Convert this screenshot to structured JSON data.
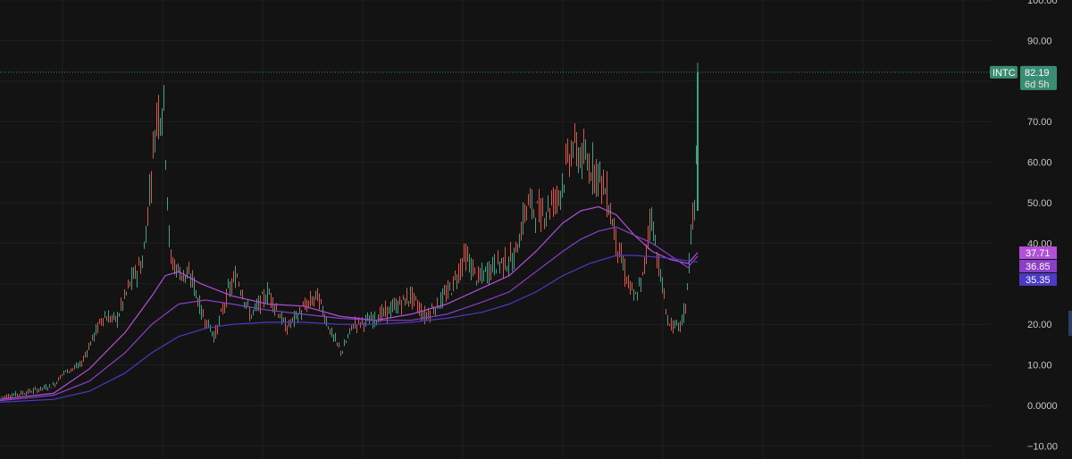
{
  "chart_data": {
    "type": "candlestick",
    "symbol": "INTC",
    "last_price": "82.19",
    "countdown": "6d 5h",
    "y_axis": {
      "ylim": [
        -12,
        100
      ],
      "ticks": [
        {
          "value": 100,
          "label": "100.00"
        },
        {
          "value": 90,
          "label": "90.00"
        },
        {
          "value": 70,
          "label": "70.00"
        },
        {
          "value": 60,
          "label": "60.00"
        },
        {
          "value": 50,
          "label": "50.00"
        },
        {
          "value": 40,
          "label": "40.00"
        },
        {
          "value": 20,
          "label": "20.00"
        },
        {
          "value": 10,
          "label": "10.00"
        },
        {
          "value": 0,
          "label": "0.0000"
        },
        {
          "value": -10,
          "label": "−10.00"
        }
      ]
    },
    "grid": true,
    "colors": {
      "background": "#131313",
      "grid": "#1f1f1f",
      "up": "#3fa287",
      "down": "#d9584c",
      "last_price": "#3a8c72",
      "ma_fast": "#b34fd8",
      "ma_mid": "#8a3fc6",
      "ma_slow": "#4a3ac4"
    },
    "price_path": [
      [
        0,
        2
      ],
      [
        35,
        3.5
      ],
      [
        60,
        5
      ],
      [
        70,
        8
      ],
      [
        90,
        10
      ],
      [
        100,
        15
      ],
      [
        115,
        22
      ],
      [
        130,
        21
      ],
      [
        145,
        30
      ],
      [
        160,
        36
      ],
      [
        168,
        55
      ],
      [
        175,
        72
      ],
      [
        183,
        74
      ],
      [
        190,
        36
      ],
      [
        200,
        33
      ],
      [
        215,
        31
      ],
      [
        225,
        23
      ],
      [
        240,
        17
      ],
      [
        255,
        28
      ],
      [
        265,
        32
      ],
      [
        280,
        22
      ],
      [
        300,
        28
      ],
      [
        320,
        19
      ],
      [
        340,
        24
      ],
      [
        355,
        27
      ],
      [
        370,
        18
      ],
      [
        382,
        13
      ],
      [
        395,
        20
      ],
      [
        415,
        21
      ],
      [
        440,
        24
      ],
      [
        460,
        27
      ],
      [
        475,
        22
      ],
      [
        490,
        25
      ],
      [
        505,
        29
      ],
      [
        520,
        37
      ],
      [
        535,
        31
      ],
      [
        555,
        35
      ],
      [
        575,
        36
      ],
      [
        590,
        50
      ],
      [
        605,
        47
      ],
      [
        625,
        52
      ],
      [
        640,
        64
      ],
      [
        655,
        60
      ],
      [
        668,
        58
      ],
      [
        680,
        51
      ],
      [
        690,
        40
      ],
      [
        700,
        32
      ],
      [
        710,
        26
      ],
      [
        720,
        32
      ],
      [
        728,
        48
      ],
      [
        738,
        33
      ],
      [
        748,
        20
      ],
      [
        760,
        19
      ],
      [
        767,
        24
      ],
      [
        773,
        42
      ],
      [
        778,
        50
      ],
      [
        781,
        82.19
      ]
    ],
    "moving_averages": [
      {
        "label": "37.71",
        "value": 37.71,
        "points": [
          [
            0,
            1.5
          ],
          [
            60,
            3
          ],
          [
            100,
            9
          ],
          [
            140,
            18
          ],
          [
            170,
            27
          ],
          [
            185,
            32
          ],
          [
            200,
            33
          ],
          [
            225,
            30
          ],
          [
            260,
            27
          ],
          [
            300,
            25
          ],
          [
            340,
            24.5
          ],
          [
            380,
            22
          ],
          [
            420,
            21
          ],
          [
            460,
            22.5
          ],
          [
            500,
            25
          ],
          [
            540,
            29
          ],
          [
            570,
            32
          ],
          [
            600,
            38
          ],
          [
            630,
            45
          ],
          [
            650,
            48
          ],
          [
            670,
            49
          ],
          [
            690,
            47
          ],
          [
            710,
            42
          ],
          [
            730,
            38
          ],
          [
            750,
            36
          ],
          [
            770,
            35
          ],
          [
            781,
            37.71
          ]
        ]
      },
      {
        "label": "36.85",
        "value": 36.85,
        "points": [
          [
            0,
            1.2
          ],
          [
            60,
            2.5
          ],
          [
            100,
            6
          ],
          [
            140,
            13
          ],
          [
            170,
            20
          ],
          [
            200,
            25
          ],
          [
            230,
            26
          ],
          [
            260,
            25
          ],
          [
            300,
            23.5
          ],
          [
            340,
            22.5
          ],
          [
            380,
            21.5
          ],
          [
            420,
            21
          ],
          [
            460,
            21
          ],
          [
            500,
            22.5
          ],
          [
            540,
            25.5
          ],
          [
            570,
            28
          ],
          [
            600,
            33
          ],
          [
            630,
            38
          ],
          [
            650,
            41
          ],
          [
            670,
            43
          ],
          [
            690,
            44
          ],
          [
            710,
            42
          ],
          [
            730,
            40
          ],
          [
            750,
            37
          ],
          [
            770,
            34
          ],
          [
            781,
            36.85
          ]
        ]
      },
      {
        "label": "35.35",
        "value": 35.35,
        "points": [
          [
            0,
            0.8
          ],
          [
            60,
            1.5
          ],
          [
            100,
            3.5
          ],
          [
            140,
            8
          ],
          [
            170,
            13
          ],
          [
            200,
            17
          ],
          [
            230,
            19
          ],
          [
            260,
            20
          ],
          [
            300,
            20.5
          ],
          [
            340,
            20.5
          ],
          [
            380,
            20
          ],
          [
            420,
            20
          ],
          [
            460,
            20.5
          ],
          [
            500,
            21.5
          ],
          [
            540,
            23
          ],
          [
            570,
            25
          ],
          [
            600,
            28
          ],
          [
            630,
            32
          ],
          [
            660,
            35
          ],
          [
            690,
            37
          ],
          [
            710,
            37
          ],
          [
            740,
            36.5
          ],
          [
            760,
            36
          ],
          [
            775,
            35.5
          ],
          [
            781,
            35.35
          ]
        ]
      }
    ]
  }
}
